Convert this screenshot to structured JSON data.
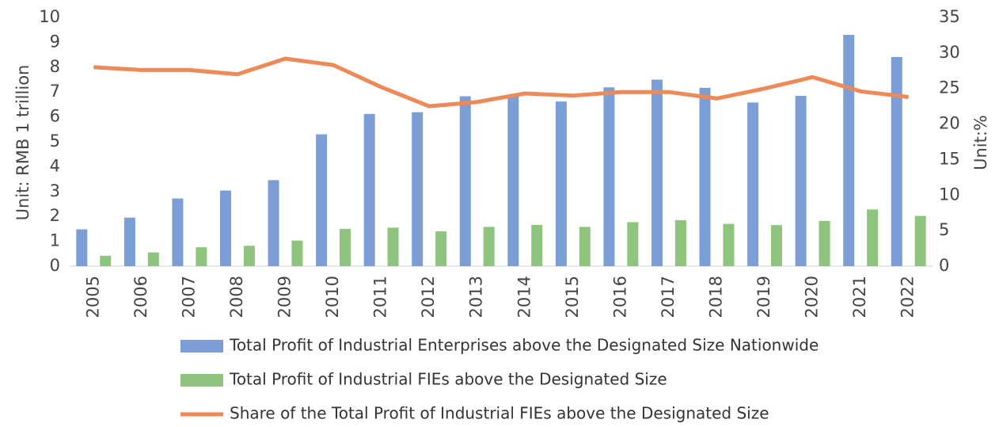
{
  "chart_data": {
    "type": "bar_line",
    "y_label": "Unit: RMB 1 trillion",
    "y2_label": "Unit:%",
    "categories": [
      "2005",
      "2006",
      "2007",
      "2008",
      "2009",
      "2010",
      "2011",
      "2012",
      "2013",
      "2014",
      "2015",
      "2016",
      "2017",
      "2018",
      "2019",
      "2020",
      "2021",
      "2022"
    ],
    "series": [
      {
        "name": "Total Profit of Industrial Enterprises above the Designated Size Nationwide",
        "color": "#7b9ed6",
        "kind": "bar",
        "values": [
          1.48,
          1.95,
          2.72,
          3.04,
          3.46,
          5.3,
          6.12,
          6.19,
          6.83,
          6.9,
          6.62,
          7.19,
          7.5,
          7.17,
          6.58,
          6.85,
          9.3,
          8.41
        ]
      },
      {
        "name": "Total Profit of Industrial FIEs above the Designated Size",
        "color": "#8fc47e",
        "kind": "bar",
        "values": [
          0.42,
          0.55,
          0.76,
          0.82,
          1.03,
          1.5,
          1.55,
          1.4,
          1.58,
          1.66,
          1.58,
          1.77,
          1.85,
          1.7,
          1.65,
          1.82,
          2.28,
          2.02
        ]
      },
      {
        "name": "Share of the Total Profit of Industrial FIEs above the Designated Size",
        "color": "#ee8a57",
        "kind": "line",
        "axis": "y2",
        "values": [
          28.0,
          27.6,
          27.6,
          27.0,
          29.2,
          28.3,
          25.2,
          22.5,
          23.1,
          24.3,
          24.0,
          24.5,
          24.5,
          23.6,
          25.0,
          26.6,
          24.6,
          23.8
        ]
      }
    ],
    "ylim": [
      0,
      10
    ],
    "yticks": [
      0,
      1,
      2,
      3,
      4,
      5,
      6,
      7,
      8,
      9,
      10
    ],
    "y2lim": [
      0,
      35
    ],
    "y2ticks": [
      0,
      5,
      10,
      15,
      20,
      25,
      30,
      35
    ]
  }
}
